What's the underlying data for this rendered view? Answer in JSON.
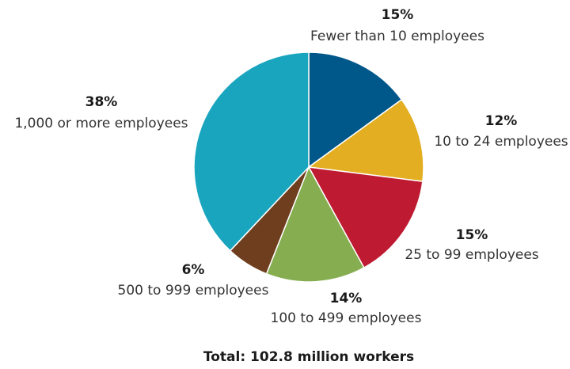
{
  "chart_data": {
    "type": "pie",
    "total_label": "Total: 102.8 million workers",
    "slices": [
      {
        "label": "Fewer than 10 employees",
        "value": 15,
        "value_label": "15%",
        "color": "#00578a"
      },
      {
        "label": "10 to 24 employees",
        "value": 12,
        "value_label": "12%",
        "color": "#e3ae22"
      },
      {
        "label": "25 to 99 employees",
        "value": 15,
        "value_label": "15%",
        "color": "#be1a32"
      },
      {
        "label": "100 to 499 employees",
        "value": 14,
        "value_label": "14%",
        "color": "#86ad50"
      },
      {
        "label": "500 to 999 employees",
        "value": 6,
        "value_label": "6%",
        "color": "#6e3e1e"
      },
      {
        "label": "1,000 or more employees",
        "value": 38,
        "value_label": "38%",
        "color": "#1aa5bf"
      }
    ]
  }
}
